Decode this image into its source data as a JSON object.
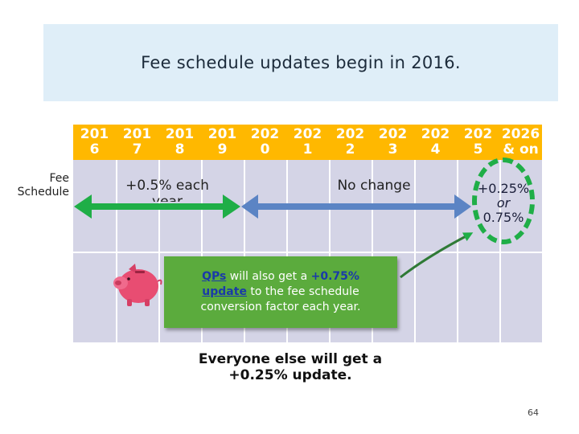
{
  "title": "Fee schedule updates begin in 2016.",
  "years": [
    {
      "line1": "201",
      "line2": "6"
    },
    {
      "line1": "201",
      "line2": "7"
    },
    {
      "line1": "201",
      "line2": "8"
    },
    {
      "line1": "201",
      "line2": "9"
    },
    {
      "line1": "202",
      "line2": "0"
    },
    {
      "line1": "202",
      "line2": "1"
    },
    {
      "line1": "202",
      "line2": "2"
    },
    {
      "line1": "202",
      "line2": "3"
    },
    {
      "line1": "202",
      "line2": "4"
    },
    {
      "line1": "202",
      "line2": "5"
    },
    {
      "line1": "2026",
      "line2": "& on"
    }
  ],
  "row_label": {
    "line1": "Fee",
    "line2": "Schedule"
  },
  "phase1": {
    "line1": "+0.5% each",
    "line2": "year"
  },
  "phase2": {
    "label": "No change"
  },
  "phase3": {
    "line1": "+0.25%",
    "line2": "or",
    "line3": "0.75%"
  },
  "qp_note": {
    "qps": "QPs",
    "t1": " will also get a ",
    "pct": "+0.75%",
    "update": "update",
    "t2": " to the fee schedule conversion factor each year."
  },
  "everyone": {
    "line1": "Everyone else will get a",
    "line2": "+0.25% update."
  },
  "page_number": "64",
  "colors": {
    "year_bg": "#ffb800",
    "grid_bg": "#d4d4e6",
    "phase1_arrow": "#1fae47",
    "phase2_arrow": "#5b84c4",
    "qp_box": "#5bab3d",
    "title_bg": "#dfeef8"
  },
  "icons": {
    "piggy_bank": "piggy-bank-icon"
  }
}
